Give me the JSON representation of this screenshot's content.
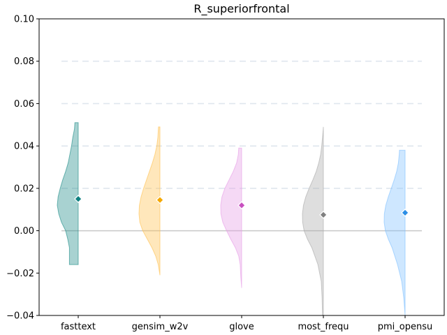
{
  "chart_data": {
    "type": "violin",
    "title": "R_superiorfrontal",
    "xlabel": "",
    "ylabel": "",
    "ylim": [
      -0.04,
      0.1
    ],
    "yticks": [
      "−0.04",
      "−0.02",
      "0.00",
      "0.02",
      "0.04",
      "0.06",
      "0.08",
      "0.10"
    ],
    "ytick_values": [
      -0.04,
      -0.02,
      0.0,
      0.02,
      0.04,
      0.06,
      0.08,
      0.1
    ],
    "grid": "horizontal dashed",
    "reference_line": 0.0,
    "categories": [
      "fasttext",
      "gensim_w2v",
      "glove",
      "most_frequ",
      "pmi_opensu"
    ],
    "series": [
      {
        "color": "#1a8a86",
        "marker_color": "#0e8080",
        "mean": 0.015,
        "min": -0.016,
        "max": 0.051,
        "density": [
          [
            -0.016,
            0.42
          ],
          [
            -0.012,
            0.42
          ],
          [
            -0.008,
            0.42
          ],
          [
            -0.004,
            0.5
          ],
          [
            0.0,
            0.6
          ],
          [
            0.004,
            0.8
          ],
          [
            0.008,
            0.93
          ],
          [
            0.012,
            1.0
          ],
          [
            0.016,
            0.96
          ],
          [
            0.02,
            0.86
          ],
          [
            0.024,
            0.74
          ],
          [
            0.028,
            0.6
          ],
          [
            0.032,
            0.48
          ],
          [
            0.036,
            0.4
          ],
          [
            0.04,
            0.32
          ],
          [
            0.044,
            0.26
          ],
          [
            0.048,
            0.18
          ],
          [
            0.051,
            0.16
          ]
        ]
      },
      {
        "color": "#ffc04d",
        "marker_color": "#f5a800",
        "mean": 0.0145,
        "min": -0.021,
        "max": 0.049,
        "density": [
          [
            -0.021,
            0.0
          ],
          [
            -0.016,
            0.08
          ],
          [
            -0.012,
            0.2
          ],
          [
            -0.008,
            0.38
          ],
          [
            -0.004,
            0.6
          ],
          [
            0.0,
            0.82
          ],
          [
            0.004,
            0.96
          ],
          [
            0.008,
            1.0
          ],
          [
            0.012,
            0.98
          ],
          [
            0.016,
            0.9
          ],
          [
            0.02,
            0.78
          ],
          [
            0.024,
            0.64
          ],
          [
            0.028,
            0.5
          ],
          [
            0.032,
            0.36
          ],
          [
            0.036,
            0.24
          ],
          [
            0.04,
            0.15
          ],
          [
            0.044,
            0.1
          ],
          [
            0.049,
            0.07
          ]
        ]
      },
      {
        "color": "#e69be6",
        "marker_color": "#c850c0",
        "mean": 0.012,
        "min": -0.027,
        "max": 0.039,
        "density": [
          [
            -0.027,
            0.0
          ],
          [
            -0.022,
            0.04
          ],
          [
            -0.016,
            0.07
          ],
          [
            -0.012,
            0.14
          ],
          [
            -0.008,
            0.3
          ],
          [
            -0.004,
            0.52
          ],
          [
            0.0,
            0.72
          ],
          [
            0.004,
            0.9
          ],
          [
            0.008,
            0.99
          ],
          [
            0.012,
            1.0
          ],
          [
            0.016,
            0.94
          ],
          [
            0.02,
            0.8
          ],
          [
            0.024,
            0.6
          ],
          [
            0.028,
            0.4
          ],
          [
            0.032,
            0.24
          ],
          [
            0.036,
            0.16
          ],
          [
            0.039,
            0.14
          ]
        ]
      },
      {
        "color": "#a8a8a8",
        "marker_color": "#808080",
        "mean": 0.0075,
        "min": -0.04,
        "max": 0.049,
        "density": [
          [
            -0.04,
            0.04
          ],
          [
            -0.032,
            0.06
          ],
          [
            -0.024,
            0.1
          ],
          [
            -0.016,
            0.26
          ],
          [
            -0.008,
            0.55
          ],
          [
            -0.004,
            0.76
          ],
          [
            0.0,
            0.92
          ],
          [
            0.004,
            0.99
          ],
          [
            0.008,
            1.0
          ],
          [
            0.012,
            0.95
          ],
          [
            0.016,
            0.84
          ],
          [
            0.02,
            0.68
          ],
          [
            0.024,
            0.5
          ],
          [
            0.028,
            0.34
          ],
          [
            0.032,
            0.22
          ],
          [
            0.036,
            0.13
          ],
          [
            0.04,
            0.08
          ],
          [
            0.044,
            0.04
          ],
          [
            0.049,
            0.0
          ]
        ]
      },
      {
        "color": "#7fbfff",
        "marker_color": "#2b8ee6",
        "mean": 0.0085,
        "min": -0.04,
        "max": 0.038,
        "density": [
          [
            -0.04,
            0.0
          ],
          [
            -0.032,
            0.06
          ],
          [
            -0.024,
            0.16
          ],
          [
            -0.016,
            0.36
          ],
          [
            -0.008,
            0.62
          ],
          [
            -0.004,
            0.8
          ],
          [
            0.0,
            0.94
          ],
          [
            0.004,
            1.0
          ],
          [
            0.008,
            0.99
          ],
          [
            0.012,
            0.92
          ],
          [
            0.016,
            0.8
          ],
          [
            0.02,
            0.66
          ],
          [
            0.024,
            0.52
          ],
          [
            0.028,
            0.4
          ],
          [
            0.032,
            0.32
          ],
          [
            0.036,
            0.28
          ],
          [
            0.038,
            0.27
          ]
        ]
      }
    ]
  }
}
